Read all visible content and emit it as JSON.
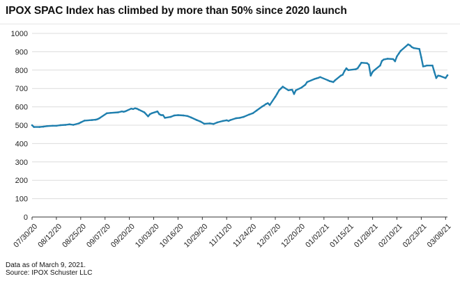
{
  "chart_data": {
    "type": "line",
    "title": "IPOX SPAC Index has climbed by more than 50% since 2020 launch",
    "xlabel": "",
    "ylabel": "",
    "ylim": [
      0,
      1000
    ],
    "yticks": [
      0,
      100,
      200,
      300,
      400,
      500,
      600,
      700,
      800,
      900,
      1000
    ],
    "x_tick_labels": [
      "07/30/20",
      "08/12/20",
      "08/25/20",
      "09/07/20",
      "09/20/20",
      "10/03/20",
      "10/16/20",
      "10/29/20",
      "11/11/20",
      "11/24/20",
      "12/07/20",
      "12/20/20",
      "01/02/21",
      "01/15/21",
      "01/28/21",
      "02/10/21",
      "02/23/21",
      "03/08/21"
    ],
    "grid": "horizontal",
    "line_color": "#1f7fae",
    "series": [
      {
        "x": [
          "07/30/20",
          "07/31/20",
          "08/03/20",
          "08/05/20",
          "08/07/20",
          "08/10/20",
          "08/12/20",
          "08/14/20",
          "08/17/20",
          "08/19/20",
          "08/21/20",
          "08/24/20",
          "08/25/20",
          "08/27/20",
          "08/31/20",
          "09/02/20",
          "09/03/20",
          "09/04/20",
          "09/08/20",
          "09/10/20",
          "09/14/20",
          "09/16/20",
          "09/17/20",
          "09/18/20",
          "09/21/20",
          "09/22/20",
          "09/23/20",
          "09/24/20",
          "09/25/20",
          "09/28/20",
          "09/30/20",
          "10/01/20",
          "10/02/20",
          "10/05/20",
          "10/06/20",
          "10/07/20",
          "10/08/20",
          "10/09/20",
          "10/12/20",
          "10/14/20",
          "10/16/20",
          "10/19/20",
          "10/21/20",
          "10/23/20",
          "10/26/20",
          "10/28/20",
          "10/30/20",
          "11/02/20",
          "11/04/20",
          "11/06/20",
          "11/09/20",
          "11/11/20",
          "11/12/20",
          "11/13/20",
          "11/16/20",
          "11/18/20",
          "11/20/20",
          "11/23/20",
          "11/25/20",
          "11/27/20",
          "11/30/20",
          "12/01/20",
          "12/02/20",
          "12/03/20",
          "12/04/20",
          "12/07/20",
          "12/08/20",
          "12/09/20",
          "12/10/20",
          "12/11/20",
          "12/14/20",
          "12/15/20",
          "12/16/20",
          "12/17/20",
          "12/18/20",
          "12/21/20",
          "12/23/20",
          "12/24/20",
          "12/28/20",
          "12/29/20",
          "12/30/20",
          "12/31/20",
          "01/04/21",
          "01/05/21",
          "01/06/21",
          "01/07/21",
          "01/08/21",
          "01/11/21",
          "01/12/21",
          "01/13/21",
          "01/14/21",
          "01/15/21",
          "01/19/21",
          "01/20/21",
          "01/21/21",
          "01/22/21",
          "01/25/21",
          "01/26/21",
          "01/27/21",
          "01/28/21",
          "01/29/21",
          "02/01/21",
          "02/02/21",
          "02/03/21",
          "02/04/21",
          "02/05/21",
          "02/08/21",
          "02/09/21",
          "02/10/21",
          "02/11/21",
          "02/12/21",
          "02/16/21",
          "02/17/21",
          "02/18/21",
          "02/19/21",
          "02/22/21",
          "02/23/21",
          "02/24/21",
          "02/25/21",
          "02/26/21",
          "03/01/21",
          "03/02/21",
          "03/03/21",
          "03/04/21",
          "03/05/21",
          "03/08/21",
          "03/09/21"
        ],
        "values": [
          500,
          490,
          490,
          492,
          495,
          497,
          497,
          500,
          502,
          505,
          502,
          510,
          515,
          525,
          528,
          530,
          533,
          538,
          565,
          567,
          570,
          575,
          573,
          576,
          590,
          588,
          592,
          590,
          585,
          570,
          548,
          560,
          565,
          575,
          560,
          555,
          555,
          540,
          545,
          553,
          555,
          553,
          550,
          542,
          528,
          520,
          508,
          510,
          507,
          515,
          523,
          527,
          523,
          528,
          538,
          540,
          545,
          558,
          565,
          580,
          602,
          608,
          615,
          620,
          610,
          655,
          672,
          690,
          700,
          710,
          690,
          692,
          693,
          670,
          690,
          705,
          720,
          735,
          752,
          755,
          758,
          762,
          745,
          740,
          738,
          735,
          745,
          770,
          775,
          795,
          810,
          800,
          805,
          810,
          825,
          840,
          838,
          830,
          770,
          790,
          800,
          825,
          850,
          858,
          860,
          862,
          860,
          848,
          875,
          890,
          905,
          940,
          935,
          925,
          920,
          915,
          870,
          820,
          822,
          825,
          825,
          790,
          757,
          770,
          768,
          757,
          772
        ]
      }
    ]
  },
  "footnotes": {
    "data_as_of": "Data as of March 9, 2021.",
    "source": "Source: IPOX Schuster LLC"
  }
}
